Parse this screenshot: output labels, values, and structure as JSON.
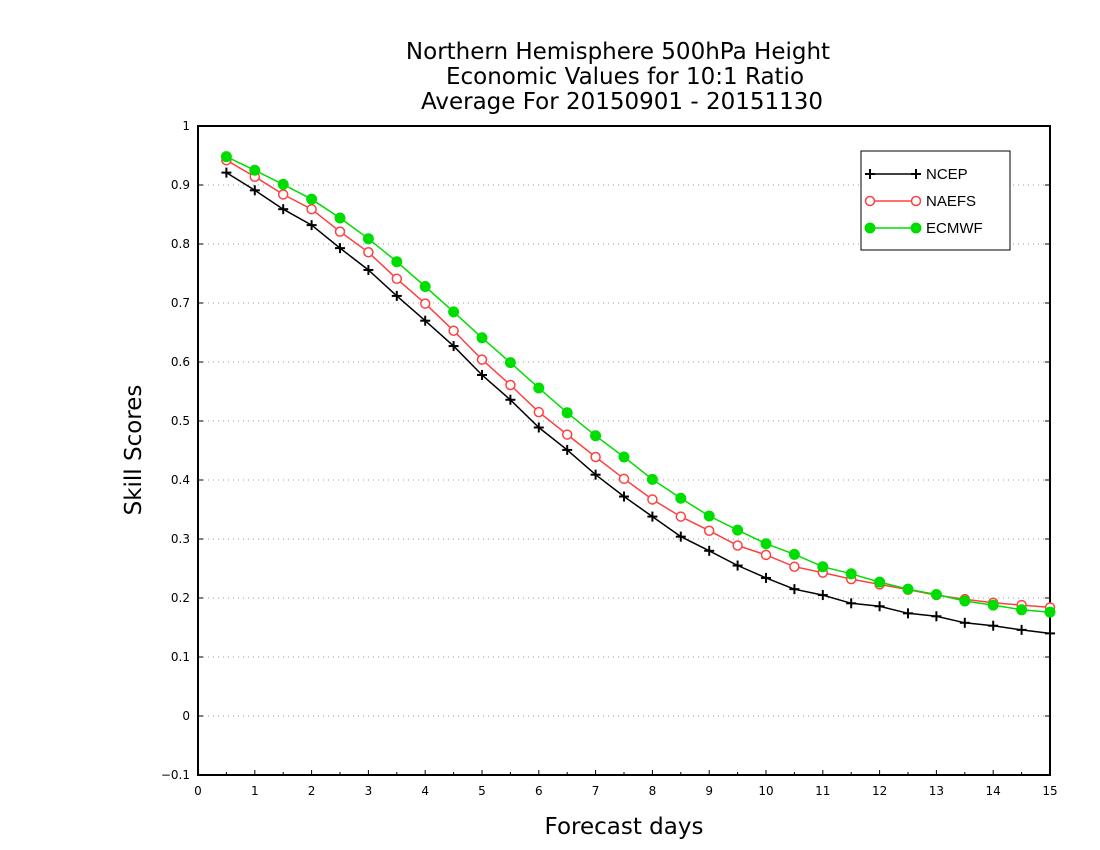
{
  "chart_data": {
    "type": "line",
    "title_lines": [
      "Northern Hemisphere 500hPa Height",
      "Economic Values for 10:1 Ratio",
      "Average For 20150901 - 20151130"
    ],
    "xlabel": "Forecast days",
    "ylabel": "Skill Scores",
    "xlim": [
      0,
      15
    ],
    "ylim": [
      -0.1,
      1
    ],
    "xticks": [
      "0",
      "1",
      "2",
      "3",
      "4",
      "5",
      "6",
      "7",
      "8",
      "9",
      "10",
      "11",
      "12",
      "13",
      "14",
      "15"
    ],
    "yticks": [
      "−0.1",
      "0",
      "0.1",
      "0.2",
      "0.3",
      "0.4",
      "0.5",
      "0.6",
      "0.7",
      "0.8",
      "0.9",
      "1"
    ],
    "grid": "horizontal dotted",
    "legend_position": "top-right",
    "x": [
      0.5,
      1,
      1.5,
      2,
      2.5,
      3,
      3.5,
      4,
      4.5,
      5,
      5.5,
      6,
      6.5,
      7,
      7.5,
      8,
      8.5,
      9,
      9.5,
      10,
      10.5,
      11,
      11.5,
      12,
      12.5,
      13,
      13.5,
      14,
      14.5,
      15
    ],
    "series": [
      {
        "name": "NCEP",
        "color": "#000000",
        "marker": "plus",
        "values": [
          0.921,
          0.891,
          0.859,
          0.832,
          0.793,
          0.756,
          0.712,
          0.67,
          0.627,
          0.578,
          0.536,
          0.489,
          0.451,
          0.409,
          0.372,
          0.338,
          0.304,
          0.28,
          0.255,
          0.234,
          0.215,
          0.205,
          0.191,
          0.186,
          0.174,
          0.169,
          0.158,
          0.153,
          0.146,
          0.14
        ]
      },
      {
        "name": "NAEFS",
        "color": "#ff4040",
        "marker": "open-circle",
        "values": [
          0.942,
          0.914,
          0.884,
          0.859,
          0.821,
          0.786,
          0.741,
          0.699,
          0.653,
          0.604,
          0.561,
          0.515,
          0.477,
          0.439,
          0.402,
          0.367,
          0.338,
          0.314,
          0.289,
          0.273,
          0.253,
          0.243,
          0.232,
          0.223,
          0.214,
          0.205,
          0.198,
          0.192,
          0.188,
          0.184
        ]
      },
      {
        "name": "ECMWF",
        "color": "#00dd00",
        "marker": "filled-circle",
        "values": [
          0.948,
          0.925,
          0.901,
          0.876,
          0.844,
          0.809,
          0.77,
          0.728,
          0.685,
          0.641,
          0.599,
          0.556,
          0.514,
          0.475,
          0.439,
          0.401,
          0.369,
          0.339,
          0.315,
          0.292,
          0.274,
          0.253,
          0.241,
          0.227,
          0.215,
          0.206,
          0.195,
          0.188,
          0.18,
          0.176
        ]
      }
    ]
  }
}
